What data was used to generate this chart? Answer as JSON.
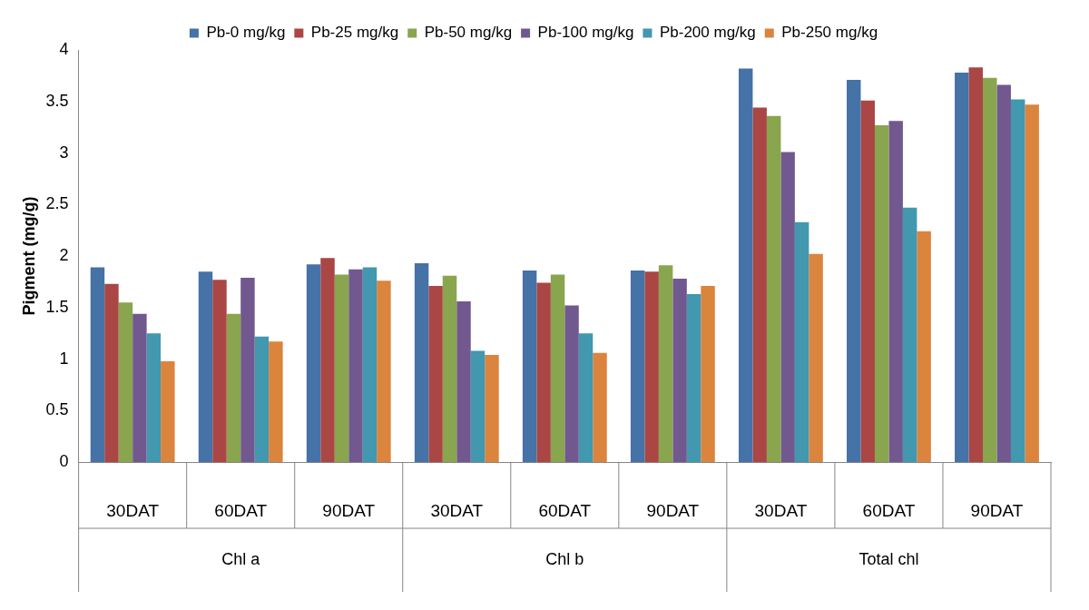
{
  "chart_data": {
    "type": "bar",
    "ylabel": "Pigment (mg/g)",
    "categories": [
      "30DAT",
      "60DAT",
      "90DAT",
      "30DAT",
      "60DAT",
      "90DAT",
      "30DAT",
      "60DAT",
      "90DAT"
    ],
    "annotations": [
      "Chl a",
      "Chl b",
      "Total chl"
    ],
    "series": [
      {
        "name": "Pb-0 mg/kg",
        "color": "#4572a7",
        "values": [
          1.89,
          1.85,
          1.92,
          1.93,
          1.86,
          1.86,
          3.82,
          3.71,
          3.78
        ]
      },
      {
        "name": "Pb-25 mg/kg",
        "color": "#aa4643",
        "values": [
          1.73,
          1.77,
          1.98,
          1.71,
          1.74,
          1.85,
          3.44,
          3.51,
          3.83
        ]
      },
      {
        "name": "Pb-50 mg/kg",
        "color": "#89a54e",
        "values": [
          1.55,
          1.44,
          1.82,
          1.81,
          1.82,
          1.91,
          3.36,
          3.27,
          3.73
        ]
      },
      {
        "name": "Pb-100 mg/kg",
        "color": "#71588f",
        "values": [
          1.44,
          1.79,
          1.87,
          1.56,
          1.52,
          1.78,
          3.01,
          3.31,
          3.66
        ]
      },
      {
        "name": "Pb-200 mg/kg",
        "color": "#4198af",
        "values": [
          1.25,
          1.22,
          1.89,
          1.08,
          1.25,
          1.63,
          2.33,
          2.47,
          3.52
        ]
      },
      {
        "name": "Pb-250 mg/kg",
        "color": "#db843d",
        "values": [
          0.98,
          1.17,
          1.76,
          1.04,
          1.06,
          1.71,
          2.02,
          2.24,
          3.47
        ]
      }
    ],
    "ylim": [
      0,
      4
    ],
    "yticks": [
      0,
      0.5,
      1,
      1.5,
      2,
      2.5,
      3,
      3.5,
      4
    ],
    "grid": false,
    "legend": "top"
  }
}
